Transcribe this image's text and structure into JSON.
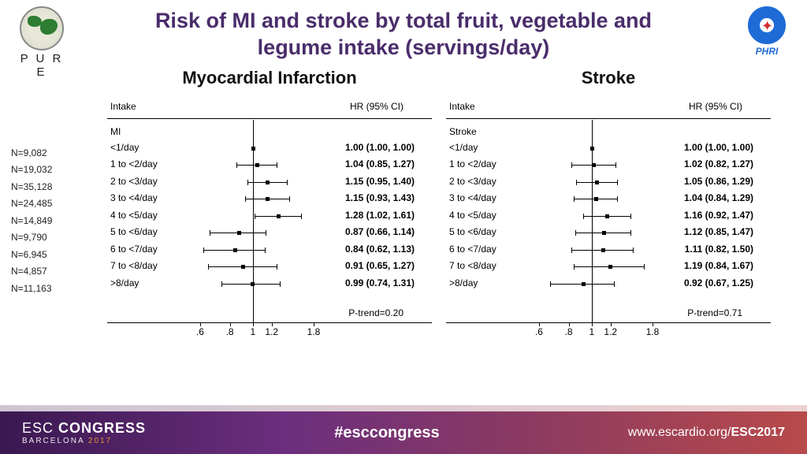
{
  "title_line1": "Risk of MI and stroke by total fruit, vegetable and",
  "title_line2": "legume intake (servings/day)",
  "logo_left_text": "P U R E",
  "logo_right_text": "PHRI",
  "n_values": [
    "N=9,082",
    "N=19,032",
    "N=35,128",
    "N=24,485",
    "N=14,849",
    "N=9,790",
    "N=6,945",
    "N=4,857",
    "N=11,163"
  ],
  "header_intake": "Intake",
  "header_hr": "HR (95% CI)",
  "x_ticks": [
    0.6,
    0.8,
    1.0,
    1.2,
    1.8
  ],
  "x_labels": [
    ".6",
    ".8",
    "1",
    "1.2",
    "1.8"
  ],
  "x_range": [
    0.5,
    1.9
  ],
  "axis_scale": "log",
  "panel_mi": {
    "title": "Myocardial Infarction",
    "group": "MI",
    "ptrend": "P-trend=0.20",
    "rows": [
      {
        "label": "<1/day",
        "text": "1.00 (1.00, 1.00)",
        "pt": 1.0,
        "lo": 1.0,
        "hi": 1.0
      },
      {
        "label": "1 to <2/day",
        "text": "1.04 (0.85, 1.27)",
        "pt": 1.04,
        "lo": 0.85,
        "hi": 1.27
      },
      {
        "label": "2 to <3/day",
        "text": "1.15 (0.95, 1.40)",
        "pt": 1.15,
        "lo": 0.95,
        "hi": 1.4
      },
      {
        "label": "3 to <4/day",
        "text": "1.15 (0.93, 1.43)",
        "pt": 1.15,
        "lo": 0.93,
        "hi": 1.43
      },
      {
        "label": "4 to <5/day",
        "text": "1.28 (1.02, 1.61)",
        "pt": 1.28,
        "lo": 1.02,
        "hi": 1.61
      },
      {
        "label": "5 to <6/day",
        "text": "0.87 (0.66, 1.14)",
        "pt": 0.87,
        "lo": 0.66,
        "hi": 1.14
      },
      {
        "label": "6 to <7/day",
        "text": "0.84 (0.62, 1.13)",
        "pt": 0.84,
        "lo": 0.62,
        "hi": 1.13
      },
      {
        "label": "7 to <8/day",
        "text": "0.91 (0.65, 1.27)",
        "pt": 0.91,
        "lo": 0.65,
        "hi": 1.27
      },
      {
        "label": ">8/day",
        "text": "0.99 (0.74, 1.31)",
        "pt": 0.99,
        "lo": 0.74,
        "hi": 1.31
      }
    ]
  },
  "panel_stroke": {
    "title": "Stroke",
    "group": "Stroke",
    "ptrend": "P-trend=0.71",
    "rows": [
      {
        "label": "<1/day",
        "text": "1.00 (1.00, 1.00)",
        "pt": 1.0,
        "lo": 1.0,
        "hi": 1.0
      },
      {
        "label": "1 to <2/day",
        "text": "1.02 (0.82, 1.27)",
        "pt": 1.02,
        "lo": 0.82,
        "hi": 1.27
      },
      {
        "label": "2 to <3/day",
        "text": "1.05 (0.86, 1.29)",
        "pt": 1.05,
        "lo": 0.86,
        "hi": 1.29
      },
      {
        "label": "3 to <4/day",
        "text": "1.04 (0.84, 1.29)",
        "pt": 1.04,
        "lo": 0.84,
        "hi": 1.29
      },
      {
        "label": "4 to <5/day",
        "text": "1.16 (0.92, 1.47)",
        "pt": 1.16,
        "lo": 0.92,
        "hi": 1.47
      },
      {
        "label": "5 to <6/day",
        "text": "1.12 (0.85, 1.47)",
        "pt": 1.12,
        "lo": 0.85,
        "hi": 1.47
      },
      {
        "label": "6 to <7/day",
        "text": "1.11 (0.82, 1.50)",
        "pt": 1.11,
        "lo": 0.82,
        "hi": 1.5
      },
      {
        "label": "7 to <8/day",
        "text": "1.19 (0.84, 1.67)",
        "pt": 1.19,
        "lo": 0.84,
        "hi": 1.67
      },
      {
        "label": ">8/day",
        "text": "0.92 (0.67, 1.25)",
        "pt": 0.92,
        "lo": 0.67,
        "hi": 1.25
      }
    ]
  },
  "footer": {
    "brand": "ESC CONGRESS",
    "city": "BARCELONA",
    "year": "2017",
    "hashtag": "#esccongress",
    "url_prefix": "www.escardio.org/",
    "url_bold": "ESC2017"
  }
}
